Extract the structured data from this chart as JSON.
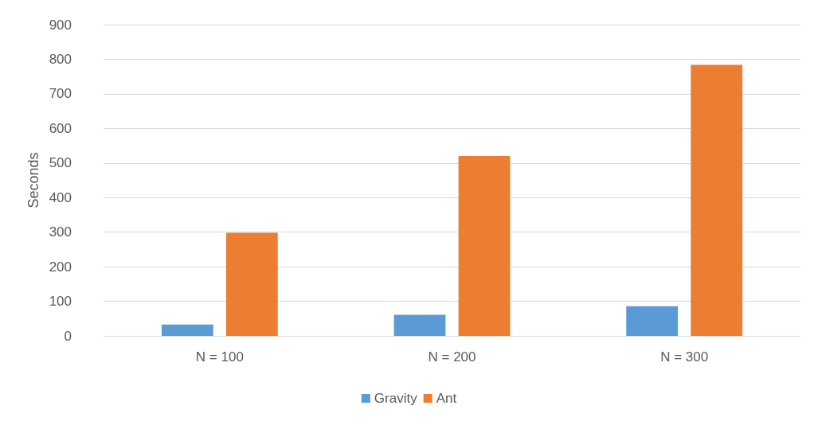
{
  "chart_data": {
    "type": "bar",
    "ylabel": "Seconds",
    "categories": [
      "N = 100",
      "N = 200",
      "N = 300"
    ],
    "series": [
      {
        "name": "Gravity",
        "color": "#5b9bd5",
        "values": [
          33,
          61,
          86
        ]
      },
      {
        "name": "Ant",
        "color": "#ed7d31",
        "values": [
          298,
          520,
          784
        ]
      }
    ],
    "ylim": [
      0,
      900
    ],
    "yticks": [
      0,
      100,
      200,
      300,
      400,
      500,
      600,
      700,
      800,
      900
    ],
    "grid": "y",
    "legend": "bottom"
  }
}
